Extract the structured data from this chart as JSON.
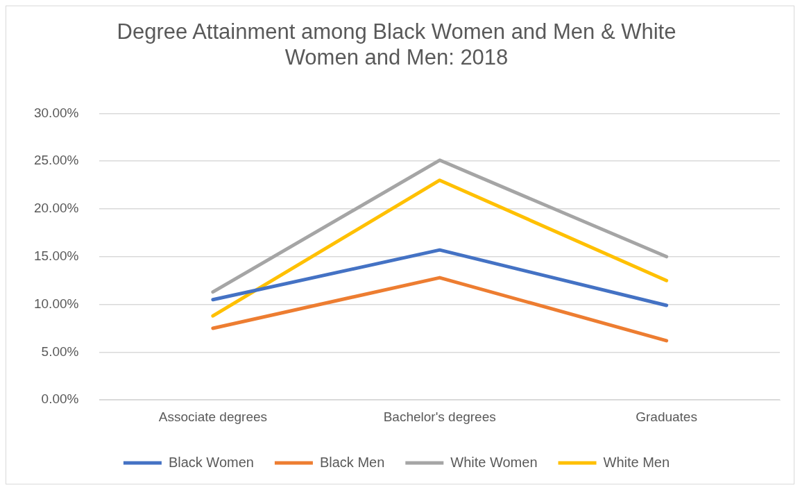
{
  "chart_data": {
    "type": "line",
    "title": "Degree Attainment among Black Women and Men & White Women and Men: 2018",
    "categories": [
      "Associate degrees",
      "Bachelor's degrees",
      "Graduates"
    ],
    "series": [
      {
        "name": "Black Women",
        "color": "#4472c4",
        "values": [
          10.5,
          15.7,
          9.9
        ]
      },
      {
        "name": "Black Men",
        "color": "#ed7d31",
        "values": [
          7.5,
          12.8,
          6.2
        ]
      },
      {
        "name": "White Women",
        "color": "#a5a5a5",
        "values": [
          11.3,
          25.1,
          15.0
        ]
      },
      {
        "name": "White Men",
        "color": "#ffc000",
        "values": [
          8.8,
          23.0,
          12.5
        ]
      }
    ],
    "ylim": [
      0,
      30
    ],
    "yticks": [
      {
        "value": 0,
        "label": "0.00%"
      },
      {
        "value": 5,
        "label": "5.00%"
      },
      {
        "value": 10,
        "label": "10.00%"
      },
      {
        "value": 15,
        "label": "15.00%"
      },
      {
        "value": 20,
        "label": "20.00%"
      },
      {
        "value": 25,
        "label": "25.00%"
      },
      {
        "value": 30,
        "label": "30.00%"
      }
    ],
    "grid": "y",
    "legend": "bottom",
    "marker": "none",
    "line_style": "solid"
  }
}
